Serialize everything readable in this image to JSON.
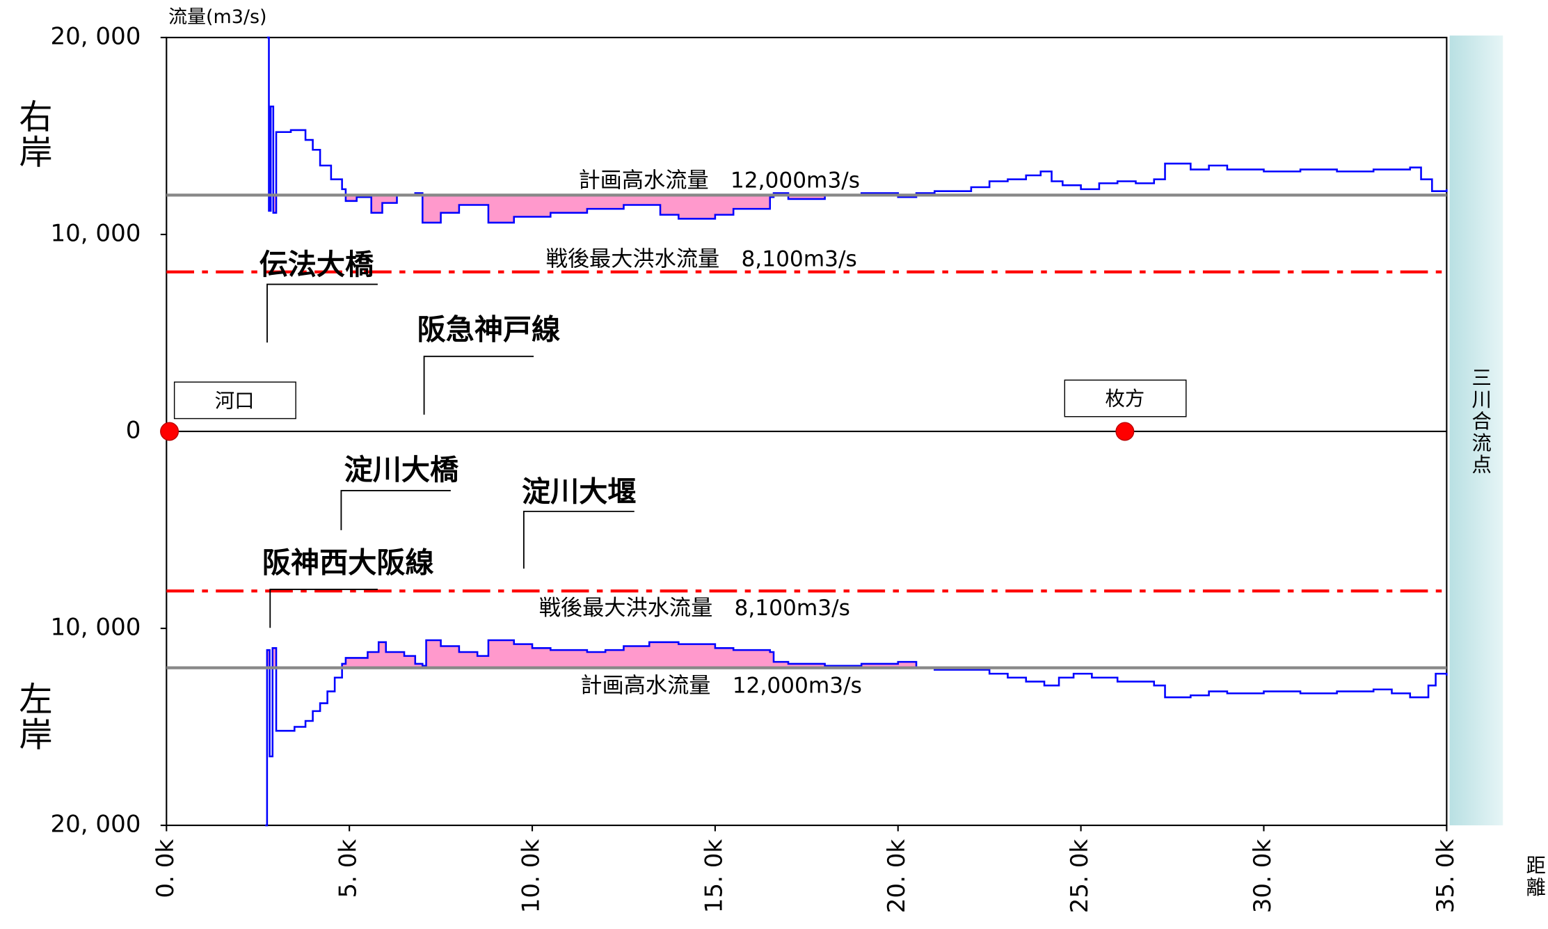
{
  "chart_data": [
    {
      "type": "line",
      "ylabel": "流量(m3/s)",
      "xlim": [
        0,
        35
      ],
      "ylim": [
        0,
        20000
      ],
      "yticks": [
        0,
        {
          "value": 10000,
          "label": "10, 000"
        },
        {
          "value": 20000,
          "label": "20, 000"
        }
      ],
      "series": [
        {
          "name": "右岸",
          "color": "#0000ff",
          "x": [
            2.75,
            2.8,
            2.85,
            2.92,
            3.0,
            3.4,
            3.8,
            4.0,
            4.2,
            4.5,
            4.8,
            4.9,
            5.2,
            5.6,
            5.9,
            6.3,
            6.8,
            7.0,
            7.5,
            8.0,
            8.8,
            9.5,
            10.5,
            11.5,
            12.5,
            13.5,
            14.0,
            15.0,
            15.5,
            16.5,
            16.6,
            17.0,
            18.0,
            19.0,
            20.0,
            20.5,
            21.0,
            22.0,
            22.5,
            23.0,
            23.5,
            23.9,
            24.2,
            24.5,
            25.0,
            25.5,
            26.0,
            26.5,
            27.0,
            27.3,
            28.0,
            28.5,
            29.0,
            30.0,
            31.0,
            32.0,
            33.0,
            34.0,
            34.3,
            34.6,
            35.0
          ],
          "values": [
            20000,
            11200,
            16500,
            11100,
            15200,
            15300,
            14800,
            14300,
            13500,
            12800,
            12300,
            11700,
            11900,
            11100,
            11600,
            12000,
            12100,
            10600,
            11100,
            11500,
            10600,
            10900,
            11100,
            11300,
            11500,
            11000,
            10800,
            11000,
            11300,
            11900,
            12100,
            11800,
            12000,
            12100,
            11900,
            12100,
            12200,
            12400,
            12700,
            12800,
            13000,
            13200,
            12700,
            12500,
            12300,
            12600,
            12700,
            12600,
            12800,
            13600,
            13300,
            13500,
            13300,
            13200,
            13300,
            13200,
            13300,
            13400,
            12800,
            12200,
            12300
          ]
        }
      ],
      "reference_lines": [
        {
          "value": 12000,
          "label": "計画高水流量　12,000m3/s",
          "color": "#888888",
          "style": "solid"
        },
        {
          "value": 8100,
          "label": "戦後最大洪水流量　8,100m3/s",
          "color": "#ff0000",
          "style": "dashdot"
        }
      ],
      "annotations": [
        "伝法大橋",
        "阪急神戸線"
      ],
      "places": [
        "河口",
        "枚方"
      ],
      "confluence": "三川合流点"
    },
    {
      "type": "line",
      "xlabel": "距離",
      "xlim": [
        0,
        35
      ],
      "ylim": [
        20000,
        0
      ],
      "xticks": [
        {
          "value": 0,
          "label": "0. 0k"
        },
        {
          "value": 5,
          "label": "5. 0k"
        },
        {
          "value": 10,
          "label": "10. 0k"
        },
        {
          "value": 15,
          "label": "15. 0k"
        },
        {
          "value": 20,
          "label": "20. 0k"
        },
        {
          "value": 25,
          "label": "25. 0k"
        },
        {
          "value": 30,
          "label": "30. 0k"
        },
        {
          "value": 35,
          "label": "35. 0k"
        }
      ],
      "yticks": [
        {
          "value": 10000,
          "label": "10, 000"
        },
        {
          "value": 20000,
          "label": "20, 000"
        }
      ],
      "series": [
        {
          "name": "左岸",
          "color": "#0000ff",
          "x": [
            2.7,
            2.75,
            2.82,
            2.9,
            3.0,
            3.5,
            3.8,
            4.0,
            4.2,
            4.4,
            4.6,
            4.8,
            4.9,
            5.5,
            5.8,
            6.0,
            6.5,
            6.8,
            7.0,
            7.1,
            7.5,
            8.0,
            8.5,
            8.8,
            9.5,
            10.0,
            10.5,
            11.5,
            12.0,
            12.5,
            13.2,
            14.0,
            15.0,
            15.5,
            16.5,
            16.6,
            17.0,
            18.0,
            19.0,
            20.0,
            20.5,
            21.0,
            22.0,
            22.5,
            23.0,
            23.5,
            24.0,
            24.4,
            24.8,
            25.3,
            26.0,
            27.0,
            27.3,
            28.0,
            28.5,
            29.0,
            30.0,
            31.0,
            32.0,
            33.0,
            33.5,
            34.0,
            34.5,
            34.7,
            35.0
          ],
          "values": [
            20000,
            11100,
            16500,
            11000,
            15200,
            15000,
            14700,
            14200,
            13800,
            13200,
            12500,
            11800,
            11500,
            11200,
            10700,
            11200,
            11400,
            11800,
            11900,
            10600,
            10900,
            11200,
            11400,
            10600,
            10800,
            11000,
            11100,
            11200,
            11100,
            10900,
            10700,
            10800,
            11000,
            11100,
            11200,
            11700,
            11800,
            11900,
            11800,
            11700,
            12000,
            12100,
            12100,
            12300,
            12500,
            12700,
            12900,
            12500,
            12300,
            12500,
            12700,
            12900,
            13500,
            13400,
            13200,
            13300,
            13200,
            13300,
            13200,
            13100,
            13300,
            13500,
            12900,
            12300,
            12400
          ]
        }
      ],
      "reference_lines": [
        {
          "value": 12000,
          "label": "計画高水流量　12,000m3/s",
          "color": "#888888",
          "style": "solid"
        },
        {
          "value": 8100,
          "label": "戦後最大洪水流量　8,100m3/s",
          "color": "#ff0000",
          "style": "dashdot"
        }
      ],
      "annotations": [
        "淀川大橋",
        "淀川大堰",
        "阪神西大阪線"
      ]
    }
  ]
}
